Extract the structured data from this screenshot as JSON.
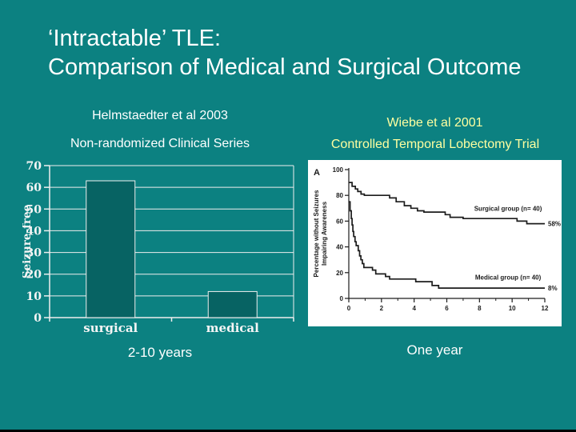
{
  "slide": {
    "background_color": "#0c8181",
    "title_line1": "‘Intractable’ TLE:",
    "title_line2": "Comparison of Medical and Surgical Outcome",
    "left_panel": {
      "heading": "Helmstaedter et al 2003",
      "subheading": "Non-randomized Clinical Series",
      "caption": "2-10 years",
      "text_color": "#ffffff"
    },
    "right_panel": {
      "heading": "Wiebe et al 2001",
      "subheading": "Controlled Temporal Lobectomy Trial",
      "caption": "One year",
      "accent_color": "#ffffa0"
    }
  },
  "chart_data": [
    {
      "type": "bar",
      "title": "",
      "categories": [
        "surgical",
        "medical"
      ],
      "values": [
        63,
        12
      ],
      "xlabel": "",
      "ylabel": "Seizure-free",
      "ylim": [
        0,
        70
      ],
      "ytick_step": 10,
      "grid": true,
      "legend": "none",
      "bar_color": "#076363",
      "axis_color": "#eeeeee",
      "label_color": "#f5f5f5"
    },
    {
      "type": "line",
      "title": "A",
      "xlabel": "",
      "ylabel_line1": "Percentage without Seizures",
      "ylabel_line2": "Impairing Awareness",
      "xlim": [
        0,
        12
      ],
      "ylim": [
        0,
        100
      ],
      "xticks_major": [
        0,
        2,
        4,
        6,
        8,
        10,
        12
      ],
      "xticks_minor": [
        1,
        3,
        5,
        7,
        9,
        11
      ],
      "yticks": [
        0,
        20,
        40,
        60,
        80,
        100
      ],
      "grid": false,
      "line_color": "#1c1c1c",
      "series": [
        {
          "name": "Surgical group (n= 40)",
          "end_label": "58%",
          "label_at": [
            9.75,
            68
          ],
          "points": [
            [
              0,
              90
            ],
            [
              0.2,
              90
            ],
            [
              0.2,
              87
            ],
            [
              0.4,
              87
            ],
            [
              0.4,
              85
            ],
            [
              0.55,
              85
            ],
            [
              0.55,
              83
            ],
            [
              0.75,
              83
            ],
            [
              0.75,
              81
            ],
            [
              0.95,
              81
            ],
            [
              0.95,
              80
            ],
            [
              2.5,
              80
            ],
            [
              2.5,
              78
            ],
            [
              2.9,
              78
            ],
            [
              2.9,
              75
            ],
            [
              3.4,
              75
            ],
            [
              3.4,
              72
            ],
            [
              3.8,
              72
            ],
            [
              3.8,
              70
            ],
            [
              4.2,
              70
            ],
            [
              4.2,
              68
            ],
            [
              4.6,
              68
            ],
            [
              4.6,
              67
            ],
            [
              5.9,
              67
            ],
            [
              5.9,
              65
            ],
            [
              6.2,
              65
            ],
            [
              6.2,
              63
            ],
            [
              7,
              63
            ],
            [
              7,
              62
            ],
            [
              10.3,
              62
            ],
            [
              10.3,
              60
            ],
            [
              10.9,
              60
            ],
            [
              10.9,
              58
            ],
            [
              12,
              58
            ]
          ]
        },
        {
          "name": "Medical group (n= 40)",
          "end_label": "8%",
          "label_at": [
            9.75,
            14.5
          ],
          "points": [
            [
              0,
              75
            ],
            [
              0.08,
              75
            ],
            [
              0.08,
              68
            ],
            [
              0.15,
              68
            ],
            [
              0.15,
              62
            ],
            [
              0.2,
              62
            ],
            [
              0.2,
              57
            ],
            [
              0.25,
              57
            ],
            [
              0.25,
              52
            ],
            [
              0.3,
              52
            ],
            [
              0.3,
              48
            ],
            [
              0.38,
              48
            ],
            [
              0.38,
              44
            ],
            [
              0.45,
              44
            ],
            [
              0.45,
              41
            ],
            [
              0.58,
              41
            ],
            [
              0.58,
              37
            ],
            [
              0.66,
              37
            ],
            [
              0.66,
              33
            ],
            [
              0.74,
              33
            ],
            [
              0.74,
              30
            ],
            [
              0.83,
              30
            ],
            [
              0.83,
              27
            ],
            [
              0.92,
              27
            ],
            [
              0.92,
              24
            ],
            [
              1.45,
              24
            ],
            [
              1.45,
              22
            ],
            [
              1.65,
              22
            ],
            [
              1.65,
              19
            ],
            [
              2.25,
              19
            ],
            [
              2.25,
              17
            ],
            [
              2.5,
              17
            ],
            [
              2.5,
              15
            ],
            [
              4.1,
              15
            ],
            [
              4.1,
              13
            ],
            [
              5.1,
              13
            ],
            [
              5.1,
              10
            ],
            [
              5.5,
              10
            ],
            [
              5.5,
              8
            ],
            [
              12,
              8
            ]
          ]
        }
      ]
    }
  ]
}
